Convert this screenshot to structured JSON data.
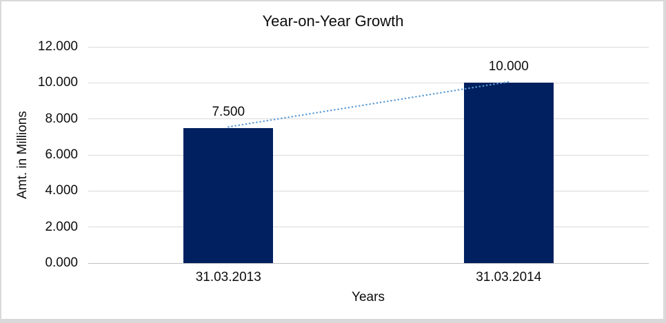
{
  "frame": {
    "background": "#ffffff",
    "border_color": "#d9d9d9"
  },
  "chart_data": {
    "type": "bar",
    "title": "Year-on-Year Growth",
    "categories": [
      "31.03.2013",
      "31.03.2014"
    ],
    "values": [
      7.5,
      10
    ],
    "data_labels": [
      "7.500",
      "10.000"
    ],
    "xlabel": "Years",
    "ylabel": "Amt. in Millions",
    "ylim": [
      0,
      12
    ],
    "ytick_values": [
      0,
      2,
      4,
      6,
      8,
      10,
      12
    ],
    "ytick_labels": [
      "0.000",
      "2.000",
      "4.000",
      "6.000",
      "8.000",
      "10.000",
      "12.000"
    ],
    "grid": "horizontal",
    "legend": "none",
    "bar_color": "#002060",
    "gridline_color": "#d9d9d9",
    "axis_line_color": "#bfbfbf",
    "text_color": "#0d0d0d",
    "trendline": {
      "type": "linear",
      "style": "round-dot",
      "color": "#5b9bd5"
    }
  }
}
